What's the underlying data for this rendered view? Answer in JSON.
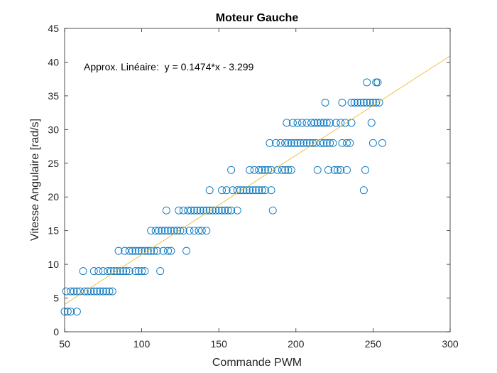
{
  "chart_data": {
    "type": "scatter",
    "title": "Moteur Gauche",
    "xlabel": "Commande PWM",
    "ylabel": "Vitesse Angulaire [rad/s]",
    "xlim": [
      50,
      300
    ],
    "ylim": [
      0,
      45
    ],
    "xticks": [
      50,
      100,
      150,
      200,
      250,
      300
    ],
    "yticks": [
      0,
      5,
      10,
      15,
      20,
      25,
      30,
      35,
      40,
      45
    ],
    "grid": false,
    "annotation": "Approx. Linéaire:  y = 0.1474*x - 3.299",
    "fit": {
      "slope": 0.1474,
      "intercept": -3.299
    },
    "colors": {
      "points": "#0072bd",
      "fit": "#edb120",
      "axes": "#262626"
    },
    "series": [
      {
        "values": [
          [
            50,
            3
          ],
          [
            52,
            3
          ],
          [
            54,
            3
          ],
          [
            58,
            3
          ],
          [
            51,
            6
          ],
          [
            54,
            6
          ],
          [
            56,
            6
          ],
          [
            58,
            6
          ],
          [
            60,
            6
          ],
          [
            63,
            6
          ],
          [
            65,
            6
          ],
          [
            67,
            6
          ],
          [
            69,
            6
          ],
          [
            71,
            6
          ],
          [
            73,
            6
          ],
          [
            75,
            6
          ],
          [
            77,
            6
          ],
          [
            79,
            6
          ],
          [
            81,
            6
          ],
          [
            62,
            9
          ],
          [
            69,
            9
          ],
          [
            72,
            9
          ],
          [
            75,
            9
          ],
          [
            78,
            9
          ],
          [
            80,
            9
          ],
          [
            82,
            9
          ],
          [
            84,
            9
          ],
          [
            86,
            9
          ],
          [
            88,
            9
          ],
          [
            90,
            9
          ],
          [
            92,
            9
          ],
          [
            96,
            9
          ],
          [
            98,
            9
          ],
          [
            100,
            9
          ],
          [
            102,
            9
          ],
          [
            112,
            9
          ],
          [
            85,
            12
          ],
          [
            89,
            12
          ],
          [
            92,
            12
          ],
          [
            94,
            12
          ],
          [
            96,
            12
          ],
          [
            98,
            12
          ],
          [
            100,
            12
          ],
          [
            102,
            12
          ],
          [
            104,
            12
          ],
          [
            106,
            12
          ],
          [
            108,
            12
          ],
          [
            110,
            12
          ],
          [
            114,
            12
          ],
          [
            117,
            12
          ],
          [
            119,
            12
          ],
          [
            129,
            12
          ],
          [
            106,
            15
          ],
          [
            109,
            15
          ],
          [
            111,
            15
          ],
          [
            113,
            15
          ],
          [
            115,
            15
          ],
          [
            117,
            15
          ],
          [
            119,
            15
          ],
          [
            121,
            15
          ],
          [
            123,
            15
          ],
          [
            125,
            15
          ],
          [
            127,
            15
          ],
          [
            131,
            15
          ],
          [
            134,
            15
          ],
          [
            137,
            15
          ],
          [
            139,
            15
          ],
          [
            142,
            15
          ],
          [
            116,
            18
          ],
          [
            124,
            18
          ],
          [
            127,
            18
          ],
          [
            130,
            18
          ],
          [
            132,
            18
          ],
          [
            134,
            18
          ],
          [
            136,
            18
          ],
          [
            138,
            18
          ],
          [
            140,
            18
          ],
          [
            142,
            18
          ],
          [
            144,
            18
          ],
          [
            146,
            18
          ],
          [
            148,
            18
          ],
          [
            150,
            18
          ],
          [
            152,
            18
          ],
          [
            154,
            18
          ],
          [
            156,
            18
          ],
          [
            158,
            18
          ],
          [
            162,
            18
          ],
          [
            185,
            18
          ],
          [
            144,
            21
          ],
          [
            152,
            21
          ],
          [
            155,
            21
          ],
          [
            159,
            21
          ],
          [
            162,
            21
          ],
          [
            164,
            21
          ],
          [
            166,
            21
          ],
          [
            168,
            21
          ],
          [
            170,
            21
          ],
          [
            172,
            21
          ],
          [
            174,
            21
          ],
          [
            176,
            21
          ],
          [
            178,
            21
          ],
          [
            180,
            21
          ],
          [
            184,
            21
          ],
          [
            244,
            21
          ],
          [
            158,
            24
          ],
          [
            170,
            24
          ],
          [
            173,
            24
          ],
          [
            176,
            24
          ],
          [
            178,
            24
          ],
          [
            180,
            24
          ],
          [
            182,
            24
          ],
          [
            184,
            24
          ],
          [
            188,
            24
          ],
          [
            191,
            24
          ],
          [
            193,
            24
          ],
          [
            195,
            24
          ],
          [
            197,
            24
          ],
          [
            214,
            24
          ],
          [
            221,
            24
          ],
          [
            225,
            24
          ],
          [
            227,
            24
          ],
          [
            229,
            24
          ],
          [
            233,
            24
          ],
          [
            245,
            24
          ],
          [
            183,
            28
          ],
          [
            187,
            28
          ],
          [
            190,
            28
          ],
          [
            193,
            28
          ],
          [
            195,
            28
          ],
          [
            197,
            28
          ],
          [
            199,
            28
          ],
          [
            201,
            28
          ],
          [
            203,
            28
          ],
          [
            205,
            28
          ],
          [
            207,
            28
          ],
          [
            209,
            28
          ],
          [
            211,
            28
          ],
          [
            213,
            28
          ],
          [
            216,
            28
          ],
          [
            218,
            28
          ],
          [
            220,
            28
          ],
          [
            222,
            28
          ],
          [
            224,
            28
          ],
          [
            230,
            28
          ],
          [
            233,
            28
          ],
          [
            235,
            28
          ],
          [
            250,
            28
          ],
          [
            256,
            28
          ],
          [
            194,
            31
          ],
          [
            198,
            31
          ],
          [
            201,
            31
          ],
          [
            204,
            31
          ],
          [
            207,
            31
          ],
          [
            210,
            31
          ],
          [
            212,
            31
          ],
          [
            214,
            31
          ],
          [
            216,
            31
          ],
          [
            218,
            31
          ],
          [
            220,
            31
          ],
          [
            222,
            31
          ],
          [
            226,
            31
          ],
          [
            229,
            31
          ],
          [
            232,
            31
          ],
          [
            236,
            31
          ],
          [
            249,
            31
          ],
          [
            219,
            34
          ],
          [
            230,
            34
          ],
          [
            236,
            34
          ],
          [
            238,
            34
          ],
          [
            240,
            34
          ],
          [
            242,
            34
          ],
          [
            244,
            34
          ],
          [
            246,
            34
          ],
          [
            248,
            34
          ],
          [
            250,
            34
          ],
          [
            252,
            34
          ],
          [
            254,
            34
          ],
          [
            246,
            37
          ],
          [
            252,
            37
          ],
          [
            253,
            37
          ]
        ]
      }
    ]
  }
}
